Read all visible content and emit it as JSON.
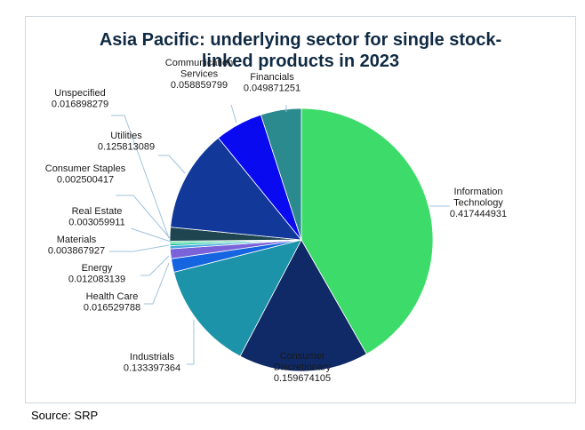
{
  "title_line1": "Asia Pacific: underlying sector for single stock-",
  "title_line2": "linked products in 2023",
  "source": "Source: SRP",
  "chart_data": {
    "type": "pie",
    "title": "Asia Pacific: underlying sector for single stock-linked products in 2023",
    "slices": [
      {
        "name": "Information Technology",
        "value": 0.417444931,
        "color": "#3ddc6a",
        "label_lines": [
          "Information",
          "Technology"
        ],
        "value_text": "0.417444931"
      },
      {
        "name": "Consumer Discretionary",
        "value": 0.159674105,
        "color": "#0f2a66",
        "label_lines": [
          "Consumer",
          "Discretionary"
        ],
        "value_text": "0.159674105"
      },
      {
        "name": "Industrials",
        "value": 0.133397364,
        "color": "#1c93a8",
        "label_lines": [
          "Industrials"
        ],
        "value_text": "0.133397364"
      },
      {
        "name": "Health Care",
        "value": 0.016529788,
        "color": "#1565e0",
        "label_lines": [
          "Health Care"
        ],
        "value_text": "0.016529788"
      },
      {
        "name": "Energy",
        "value": 0.012083139,
        "color": "#7a63d8",
        "label_lines": [
          "Energy"
        ],
        "value_text": "0.012083139"
      },
      {
        "name": "Materials",
        "value": 0.003867927,
        "color": "#4aa8e0",
        "label_lines": [
          "Materials"
        ],
        "value_text": "0.003867927"
      },
      {
        "name": "Real Estate",
        "value": 0.003059911,
        "color": "#22c9a0",
        "label_lines": [
          "Real Estate"
        ],
        "value_text": "0.003059911"
      },
      {
        "name": "Consumer Staples",
        "value": 0.002500417,
        "color": "#5bd39a",
        "label_lines": [
          "Consumer Staples"
        ],
        "value_text": "0.002500417"
      },
      {
        "name": "Unspecified",
        "value": 0.016898279,
        "color": "#1e4550",
        "label_lines": [
          "Unspecified"
        ],
        "value_text": "0.016898279"
      },
      {
        "name": "Utilities",
        "value": 0.125813089,
        "color": "#12389a",
        "label_lines": [
          "Utilities"
        ],
        "value_text": "0.125813089"
      },
      {
        "name": "Communication Services",
        "value": 0.058859799,
        "color": "#0a0af0",
        "label_lines": [
          "Communication",
          "Services"
        ],
        "value_text": "0.058859799"
      },
      {
        "name": "Financials",
        "value": 0.049871251,
        "color": "#2b8a8e",
        "label_lines": [
          "Financials"
        ],
        "value_text": "0.049871251"
      }
    ],
    "legend": "none"
  }
}
